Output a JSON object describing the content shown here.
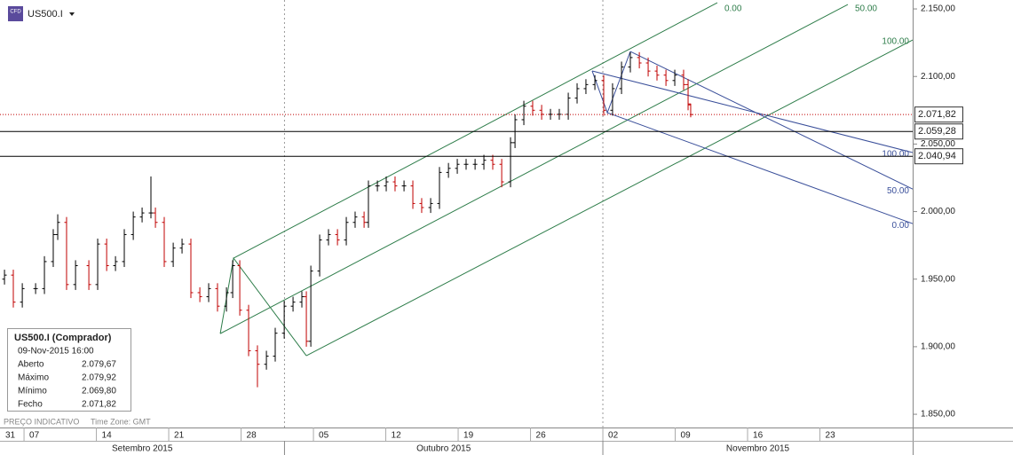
{
  "chart_data": {
    "type": "ohlc",
    "title": "US500.I",
    "icon_text": "CFD",
    "x": [
      -1.35,
      -0.74,
      -0.12,
      0.8,
      1.41,
      2.02,
      2.33,
      2.94,
      3.56,
      4.48,
      5.09,
      5.71,
      6.32,
      6.93,
      7.55,
      8.16,
      8.77,
      9.08,
      9.69,
      10.31,
      10.92,
      11.53,
      12.15,
      12.76,
      13.37,
      13.99,
      14.42,
      14.91,
      15.52,
      16.13,
      16.75,
      17.36,
      17.98,
      18.59,
      19.2,
      19.51,
      19.82,
      20.43,
      21.04,
      21.66,
      22.27,
      22.88,
      23.5,
      23.8,
      24.42,
      25.03,
      25.64,
      26.26,
      26.87,
      27.48,
      28.1,
      28.71,
      29.33,
      29.94,
      30.55,
      31.17,
      31.78,
      32.39,
      33.01,
      33.62,
      33.93,
      34.54,
      35.15,
      35.77,
      36.38,
      36.99,
      37.61,
      38.22,
      38.83,
      39.45,
      40.06,
      40.67,
      41.29,
      41.9,
      42.52,
      43.13,
      43.74,
      44.36,
      44.97,
      45.58,
      45.89,
      46.07
    ],
    "open": [
      1950,
      1953,
      1933,
      1943,
      1943,
      1963,
      1983,
      1992,
      1946,
      1960,
      1946,
      1976,
      1960,
      1963,
      1983,
      1996,
      1999,
      1999,
      1992,
      1963,
      1973,
      1976,
      1940,
      1937,
      1943,
      1930,
      1940,
      1960,
      1927,
      1897,
      1887,
      1893,
      1910,
      1930,
      1933,
      1937,
      1904,
      1956,
      1979,
      1983,
      1979,
      1992,
      1996,
      1992,
      2019,
      2019,
      2022,
      2019,
      2019,
      2006,
      2003,
      2006,
      2029,
      2032,
      2035,
      2035,
      2035,
      2038,
      2035,
      2022,
      2051,
      2068,
      2078,
      2075,
      2072,
      2072,
      2072,
      2084,
      2091,
      2094,
      2097,
      2075,
      2091,
      2107,
      2114,
      2110,
      2104,
      2101,
      2097,
      2101,
      2094,
      2079.67
    ],
    "high": [
      1957,
      1957,
      1947,
      1947,
      1967,
      1987,
      1998,
      1996,
      1964,
      1964,
      1980,
      1980,
      1967,
      1987,
      2000,
      2003,
      2026,
      2003,
      1996,
      1977,
      1980,
      1980,
      1944,
      1947,
      1947,
      1944,
      1964,
      1964,
      1931,
      1901,
      1897,
      1914,
      1934,
      1937,
      1941,
      1941,
      1960,
      1983,
      1987,
      1987,
      1996,
      2000,
      2000,
      2023,
      2023,
      2026,
      2026,
      2023,
      2023,
      2010,
      2010,
      2033,
      2036,
      2039,
      2039,
      2039,
      2042,
      2042,
      2039,
      2055,
      2072,
      2082,
      2082,
      2079,
      2076,
      2076,
      2088,
      2095,
      2098,
      2101,
      2101,
      2095,
      2111,
      2118,
      2118,
      2114,
      2108,
      2105,
      2105,
      2105,
      2098,
      2079.92
    ],
    "low": [
      1946,
      1929,
      1929,
      1939,
      1939,
      1959,
      1979,
      1942,
      1942,
      1942,
      1942,
      1956,
      1956,
      1959,
      1979,
      1992,
      1995,
      1988,
      1959,
      1959,
      1969,
      1936,
      1933,
      1933,
      1926,
      1926,
      1936,
      1923,
      1893,
      1870,
      1883,
      1889,
      1906,
      1926,
      1929,
      1900,
      1900,
      1952,
      1975,
      1975,
      1975,
      1988,
      1988,
      1988,
      2015,
      2015,
      2015,
      2015,
      2002,
      1999,
      1999,
      2002,
      2025,
      2028,
      2031,
      2031,
      2031,
      2031,
      2018,
      2018,
      2047,
      2064,
      2071,
      2068,
      2068,
      2068,
      2068,
      2080,
      2087,
      2090,
      2071,
      2071,
      2087,
      2103,
      2106,
      2100,
      2097,
      2093,
      2093,
      2090,
      2075,
      2069.8
    ],
    "close": [
      1953,
      1933,
      1943,
      1943,
      1963,
      1983,
      1992,
      1946,
      1960,
      1946,
      1976,
      1960,
      1963,
      1983,
      1996,
      1999,
      1999,
      1992,
      1963,
      1973,
      1976,
      1940,
      1937,
      1943,
      1930,
      1940,
      1960,
      1927,
      1897,
      1887,
      1893,
      1910,
      1930,
      1933,
      1937,
      1904,
      1956,
      1979,
      1983,
      1979,
      1992,
      1996,
      1992,
      2019,
      2019,
      2022,
      2019,
      2019,
      2006,
      2003,
      2006,
      2029,
      2032,
      2035,
      2035,
      2035,
      2038,
      2035,
      2022,
      2051,
      2068,
      2078,
      2075,
      2072,
      2072,
      2072,
      2084,
      2091,
      2094,
      2097,
      2075,
      2091,
      2107,
      2114,
      2110,
      2104,
      2101,
      2097,
      2101,
      2094,
      2079,
      2071.82
    ],
    "up_color": "#000000",
    "down_color": "#c00000",
    "xlim": [
      -1.66,
      61.41
    ],
    "xticks": [
      {
        "value": -5,
        "label": "31"
      },
      {
        "value": 0,
        "label": "07"
      },
      {
        "value": 5,
        "label": "14"
      },
      {
        "value": 10,
        "label": "21"
      },
      {
        "value": 15,
        "label": "28"
      },
      {
        "value": 20,
        "label": "05"
      },
      {
        "value": 25,
        "label": "12"
      },
      {
        "value": 30,
        "label": "19"
      },
      {
        "value": 35,
        "label": "26"
      },
      {
        "value": 40,
        "label": "02"
      },
      {
        "value": 45,
        "label": "09"
      },
      {
        "value": 50,
        "label": "16"
      },
      {
        "value": 55,
        "label": "23"
      }
    ],
    "months": [
      {
        "label": "Setembro 2015",
        "start": -5
      },
      {
        "label": "Outubro 2015",
        "start": 18
      },
      {
        "label": "Novembro 2015",
        "start": 40
      }
    ],
    "ylim": [
      1840.2,
      2156.6
    ],
    "yticks": [
      {
        "value": 1850,
        "label": "1.850,00"
      },
      {
        "value": 1900,
        "label": "1.900,00"
      },
      {
        "value": 1950,
        "label": "1.950,00"
      },
      {
        "value": 2000,
        "label": "2.000,00"
      },
      {
        "value": 2050,
        "label": "2.050,00"
      },
      {
        "value": 2100,
        "label": "2.100,00"
      },
      {
        "value": 2150,
        "label": "2.150,00"
      }
    ],
    "price_lines": [
      {
        "value": 2071.82,
        "label": "2.071,82",
        "color": "#c00000",
        "style": "dotted"
      },
      {
        "value": 2059.28,
        "label": "2.059,28",
        "color": "#000000",
        "style": "solid"
      },
      {
        "value": 2040.94,
        "label": "2.040,94",
        "color": "#000000",
        "style": "solid"
      }
    ],
    "drawings": [
      {
        "color": "#2e7d4a",
        "x": [
          13.56,
          14.48,
          19.51
        ],
        "y": [
          1909.7,
          1965.5,
          1893.3
        ]
      },
      {
        "color": "#2e7d4a",
        "label": "0.00",
        "x": [
          14.48,
          47.91
        ],
        "y": [
          1965.5,
          2154.6
        ]
      },
      {
        "color": "#2e7d4a",
        "label": "50.00",
        "x": [
          13.56,
          56.93
        ],
        "y": [
          1909.7,
          2153.3
        ]
      },
      {
        "color": "#2e7d4a",
        "label": "100.00",
        "x": [
          19.51,
          61.41
        ],
        "y": [
          1893.3,
          2127.0
        ]
      },
      {
        "color": "#3a4f9a",
        "x": [
          39.26,
          40.31,
          41.9
        ],
        "y": [
          2104.1,
          2073.2,
          2118.5
        ]
      },
      {
        "color": "#3a4f9a",
        "label": "100.00",
        "x": [
          39.26,
          61.41
        ],
        "y": [
          2104.1,
          2043.7
        ]
      },
      {
        "color": "#3a4f9a",
        "label": "50.00",
        "x": [
          41.9,
          61.41
        ],
        "y": [
          2118.5,
          2016.7
        ]
      },
      {
        "color": "#3a4f9a",
        "label": "0.00",
        "x": [
          40.31,
          61.41
        ],
        "y": [
          2073.2,
          1991.1
        ]
      }
    ],
    "info": {
      "title": "US500.I (Comprador)",
      "time": "09-Nov-2015 16:00",
      "rows": [
        {
          "label": "Aberto",
          "value": "2.079,67"
        },
        {
          "label": "Máximo",
          "value": "2.079,92"
        },
        {
          "label": "Mínimo",
          "value": "2.069,80"
        },
        {
          "label": "Fecho",
          "value": "2.071,82"
        }
      ]
    },
    "footer": [
      "PREÇO INDICATIVO",
      "Time Zone: GMT"
    ]
  }
}
